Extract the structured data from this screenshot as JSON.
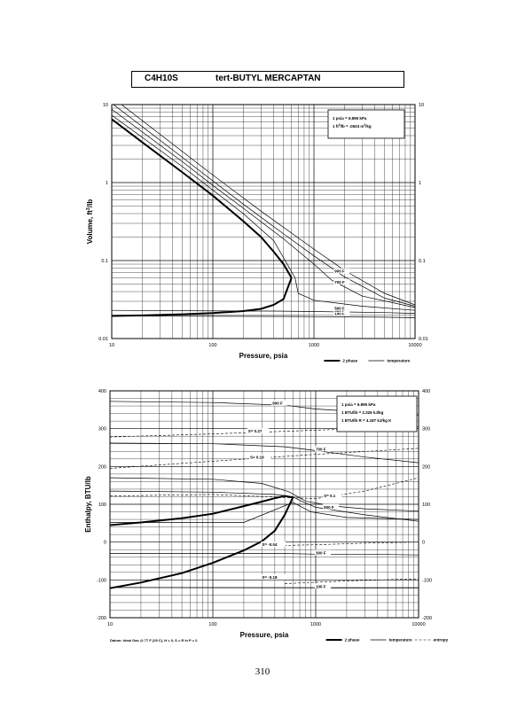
{
  "header": {
    "formula": "C4H10S",
    "name": "tert-BUTYL MERCAPTAN"
  },
  "page_number": "310",
  "chart_data": [
    {
      "type": "line",
      "x_scale": "log",
      "y_scale": "log",
      "xlim": [
        10,
        10000
      ],
      "ylim": [
        0.01,
        10
      ],
      "xlabel": "Pressure,  psia",
      "ylabel": "Volume, ft^3/lb",
      "x_ticks": [
        "10",
        "100",
        "1000",
        "10000"
      ],
      "y_ticks": [
        "10",
        "1",
        "0.1",
        "0.01"
      ],
      "y_ticks_right": [
        "10",
        "1",
        "0.1",
        "0.01"
      ],
      "grid": true,
      "conversion_box": [
        "1 psia  =  6.895 kPa",
        "1 ft^3/lb  =  .0624 m^3/kg"
      ],
      "legend": {
        "placement": "bottom-right",
        "entries": [
          "2 phase",
          "temperature"
        ]
      },
      "series": [
        {
          "label_role": "2 phase",
          "kind": "vapor",
          "points": [
            [
              10,
              6.5
            ],
            [
              20,
              3.3
            ],
            [
              50,
              1.35
            ],
            [
              100,
              0.68
            ],
            [
              200,
              0.32
            ],
            [
              300,
              0.2
            ],
            [
              400,
              0.13
            ],
            [
              500,
              0.09
            ],
            [
              600,
              0.06
            ]
          ]
        },
        {
          "label_role": "2 phase",
          "kind": "liquid",
          "points": [
            [
              10,
              0.0195
            ],
            [
              20,
              0.0198
            ],
            [
              50,
              0.0205
            ],
            [
              100,
              0.0212
            ],
            [
              200,
              0.0225
            ],
            [
              300,
              0.024
            ],
            [
              400,
              0.027
            ],
            [
              500,
              0.032
            ],
            [
              600,
              0.06
            ]
          ]
        },
        {
          "label_role": "temperature",
          "label": "100 F",
          "points": [
            [
              10,
              0.0195
            ],
            [
              700,
              0.0192
            ],
            [
              1000,
              0.0191
            ],
            [
              5000,
              0.0188
            ],
            [
              10000,
              0.0185
            ]
          ]
        },
        {
          "label_role": "temperature",
          "label": "300 F",
          "points": [
            [
              10,
              0.023
            ],
            [
              200,
              0.0225
            ],
            [
              400,
              0.0225
            ],
            [
              1000,
              0.0222
            ],
            [
              5000,
              0.0215
            ],
            [
              10000,
              0.021
            ]
          ]
        },
        {
          "label_role": "temperature",
          "label": "500 F",
          "points": [
            [
              10,
              7.3
            ],
            [
              50,
              1.6
            ],
            [
              100,
              0.8
            ],
            [
              200,
              0.4
            ],
            [
              400,
              0.18
            ],
            [
              650,
              0.06
            ],
            [
              700,
              0.038
            ],
            [
              1000,
              0.031
            ],
            [
              3000,
              0.026
            ],
            [
              10000,
              0.023
            ]
          ]
        },
        {
          "label_role": "temperature",
          "label": "700 F",
          "points": [
            [
              10,
              8.7
            ],
            [
              50,
              1.85
            ],
            [
              100,
              0.92
            ],
            [
              200,
              0.47
            ],
            [
              500,
              0.19
            ],
            [
              1000,
              0.09
            ],
            [
              1500,
              0.056
            ],
            [
              3000,
              0.035
            ],
            [
              10000,
              0.025
            ]
          ]
        },
        {
          "label_role": "temperature",
          "label": "900 F",
          "points": [
            [
              10,
              10.4
            ],
            [
              50,
              2.1
            ],
            [
              100,
              1.05
            ],
            [
              200,
              0.53
            ],
            [
              500,
              0.22
            ],
            [
              1000,
              0.115
            ],
            [
              2000,
              0.062
            ],
            [
              5000,
              0.033
            ],
            [
              10000,
              0.026
            ]
          ]
        },
        {
          "label_role": "temperature",
          "points": [
            [
              10,
              12.5
            ],
            [
              100,
              1.25
            ],
            [
              300,
              0.43
            ],
            [
              1000,
              0.14
            ],
            [
              2000,
              0.075
            ],
            [
              5000,
              0.038
            ],
            [
              10000,
              0.027
            ]
          ]
        }
      ]
    },
    {
      "type": "line",
      "x_scale": "log",
      "xlim": [
        10,
        10000
      ],
      "ylim": [
        -200,
        400
      ],
      "xlabel": "Pressure,  psia",
      "ylabel": "Enthalpy, BTU/lb",
      "x_ticks": [
        "10",
        "100",
        "1000",
        "10000"
      ],
      "y_ticks": [
        "400",
        "300",
        "200",
        "100",
        "0",
        "-100",
        "-200"
      ],
      "y_ticks_right": [
        "400",
        "300",
        "200",
        "100",
        "0",
        "-100",
        "-200"
      ],
      "grid": true,
      "conversion_box": [
        "1 psia  =  6.895 kPa",
        "1 BTU/lb  =  2.326 kJ/kg",
        "1 BTU/lb R  =  4.187 kJ/kg K"
      ],
      "footnote": "Datum: Ideal Gas @ 77 F (25 C),  H = 0,  S = R ln P = 0",
      "legend": {
        "placement": "bottom-right",
        "entries": [
          "2 phase",
          "temperature",
          "entropy"
        ]
      },
      "series": [
        {
          "label_role": "2 phase",
          "kind": "vapor",
          "points": [
            [
              10,
              45
            ],
            [
              20,
              52
            ],
            [
              50,
              63
            ],
            [
              100,
              75
            ],
            [
              200,
              95
            ],
            [
              300,
              107
            ],
            [
              400,
              116
            ],
            [
              500,
              122
            ],
            [
              600,
              118
            ]
          ]
        },
        {
          "label_role": "2 phase",
          "kind": "liquid",
          "points": [
            [
              10,
              -122
            ],
            [
              20,
              -107
            ],
            [
              50,
              -82
            ],
            [
              100,
              -55
            ],
            [
              200,
              -22
            ],
            [
              300,
              2
            ],
            [
              400,
              30
            ],
            [
              500,
              72
            ],
            [
              600,
              118
            ]
          ]
        },
        {
          "label_role": "temperature",
          "label": "900 F",
          "points": [
            [
              10,
              372
            ],
            [
              100,
              369
            ],
            [
              500,
              362
            ],
            [
              1000,
              352
            ],
            [
              3000,
              344
            ],
            [
              10000,
              335
            ]
          ]
        },
        {
          "label_role": "temperature",
          "label": "700 F",
          "points": [
            [
              10,
              262
            ],
            [
              100,
              260
            ],
            [
              500,
              252
            ],
            [
              1000,
              242
            ],
            [
              3000,
              225
            ],
            [
              10000,
              210
            ]
          ]
        },
        {
          "label_role": "temperature",
          "points": [
            [
              10,
              170
            ],
            [
              100,
              166
            ],
            [
              300,
              155
            ],
            [
              550,
              133
            ],
            [
              800,
              108
            ],
            [
              1500,
              95
            ],
            [
              3000,
              88
            ],
            [
              10000,
              82
            ]
          ]
        },
        {
          "label_role": "temperature",
          "label": "500 F",
          "points": [
            [
              10,
              135
            ],
            [
              100,
              132
            ],
            [
              400,
              126
            ],
            [
              600,
              120
            ],
            [
              700,
              110
            ],
            [
              1000,
              92
            ],
            [
              3000,
              72
            ],
            [
              10000,
              55
            ]
          ]
        },
        {
          "label_role": "temperature",
          "points": [
            [
              10,
              52
            ],
            [
              200,
              52
            ],
            [
              600,
              105
            ],
            [
              900,
              80
            ],
            [
              2000,
              65
            ],
            [
              10000,
              60
            ]
          ]
        },
        {
          "label_role": "temperature",
          "label": "300 F",
          "points": [
            [
              10,
              -30
            ],
            [
              500,
              -30
            ],
            [
              1000,
              -32
            ],
            [
              5000,
              -33
            ],
            [
              10000,
              -34
            ]
          ]
        },
        {
          "label_role": "temperature",
          "label": "100 F",
          "points": [
            [
              10,
              -120
            ],
            [
              1000,
              -121
            ],
            [
              10000,
              -122
            ]
          ]
        },
        {
          "label_role": "entropy",
          "label": "S= 0.27",
          "points": [
            [
              10,
              278
            ],
            [
              100,
              286
            ],
            [
              1000,
              296
            ],
            [
              10000,
              305
            ]
          ]
        },
        {
          "label_role": "entropy",
          "label": "S= 0.18",
          "points": [
            [
              10,
              195
            ],
            [
              100,
              214
            ],
            [
              1000,
              232
            ],
            [
              10000,
              248
            ]
          ]
        },
        {
          "label_role": "entropy",
          "label": "S= 0.1",
          "points": [
            [
              10,
              122
            ],
            [
              100,
              126
            ],
            [
              500,
              118
            ],
            [
              1000,
              115
            ],
            [
              3000,
              135
            ],
            [
              10000,
              170
            ]
          ]
        },
        {
          "label_role": "entropy",
          "label": "S= -0.04",
          "points": [
            [
              300,
              -10
            ],
            [
              1000,
              -7
            ],
            [
              3000,
              -3
            ],
            [
              10000,
              0
            ]
          ]
        },
        {
          "label_role": "entropy",
          "label": "S= -0.18",
          "points": [
            [
              500,
              -110
            ],
            [
              1000,
              -106
            ],
            [
              3000,
              -101
            ],
            [
              10000,
              -97
            ]
          ]
        }
      ]
    }
  ]
}
